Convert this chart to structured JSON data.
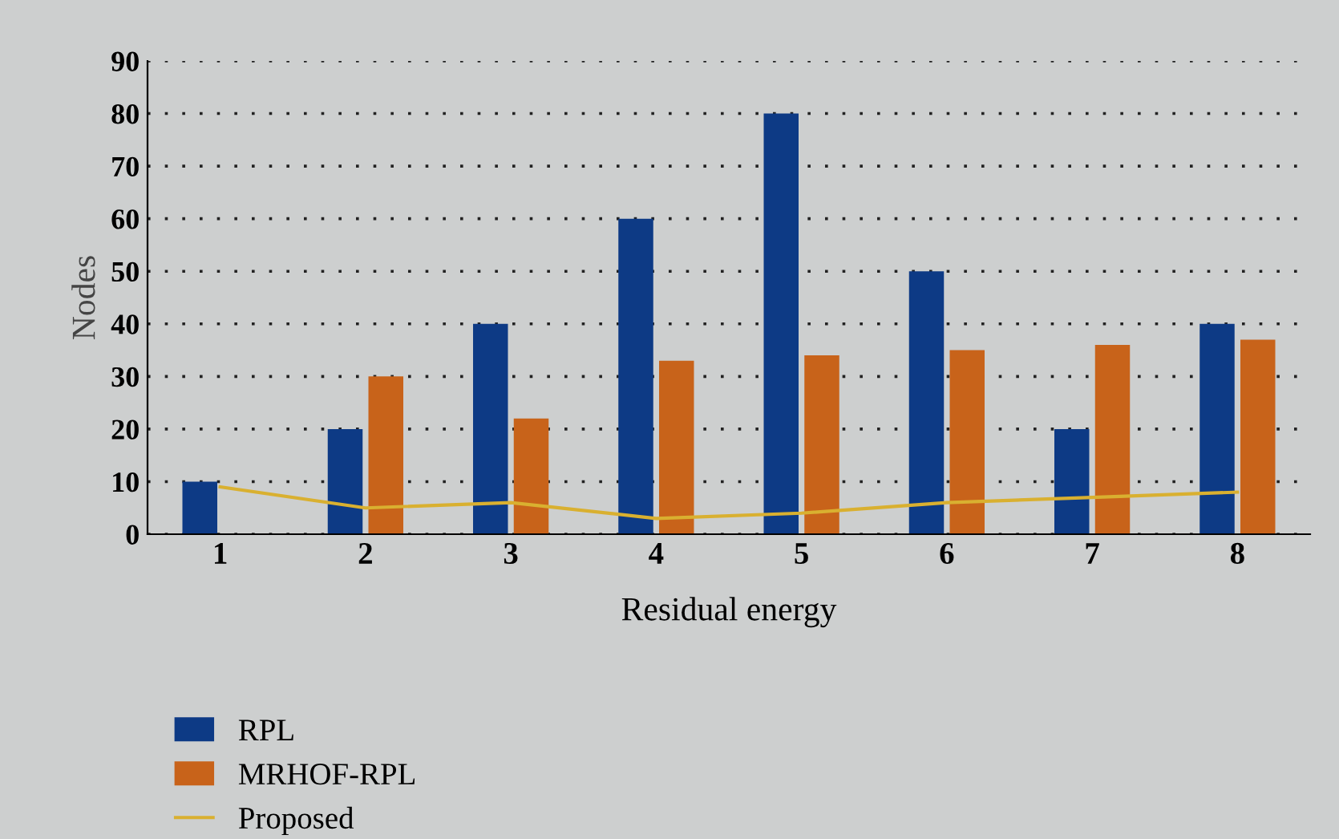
{
  "chart_data": {
    "type": "bar",
    "xlabel": "Residual energy",
    "ylabel": "Nodes",
    "categories": [
      "1",
      "2",
      "3",
      "4",
      "5",
      "6",
      "7",
      "8"
    ],
    "series": [
      {
        "name": "RPL",
        "color": "#0d3a85",
        "values": [
          10,
          20,
          40,
          60,
          80,
          50,
          20,
          40
        ]
      },
      {
        "name": "MRHOF-RPL",
        "color": "#c8631a",
        "values": [
          null,
          30,
          22,
          33,
          34,
          35,
          36,
          37
        ]
      },
      {
        "name": "Proposed",
        "type": "line",
        "color": "#d9b030",
        "values": [
          9,
          5,
          6,
          3,
          4,
          6,
          7,
          8
        ]
      }
    ],
    "ylim": [
      0,
      90
    ],
    "yticks": [
      0,
      10,
      20,
      30,
      40,
      50,
      60,
      70,
      80,
      90
    ],
    "grid": "y",
    "legend": "bottom left",
    "line_style": "solid",
    "marker": "none"
  }
}
